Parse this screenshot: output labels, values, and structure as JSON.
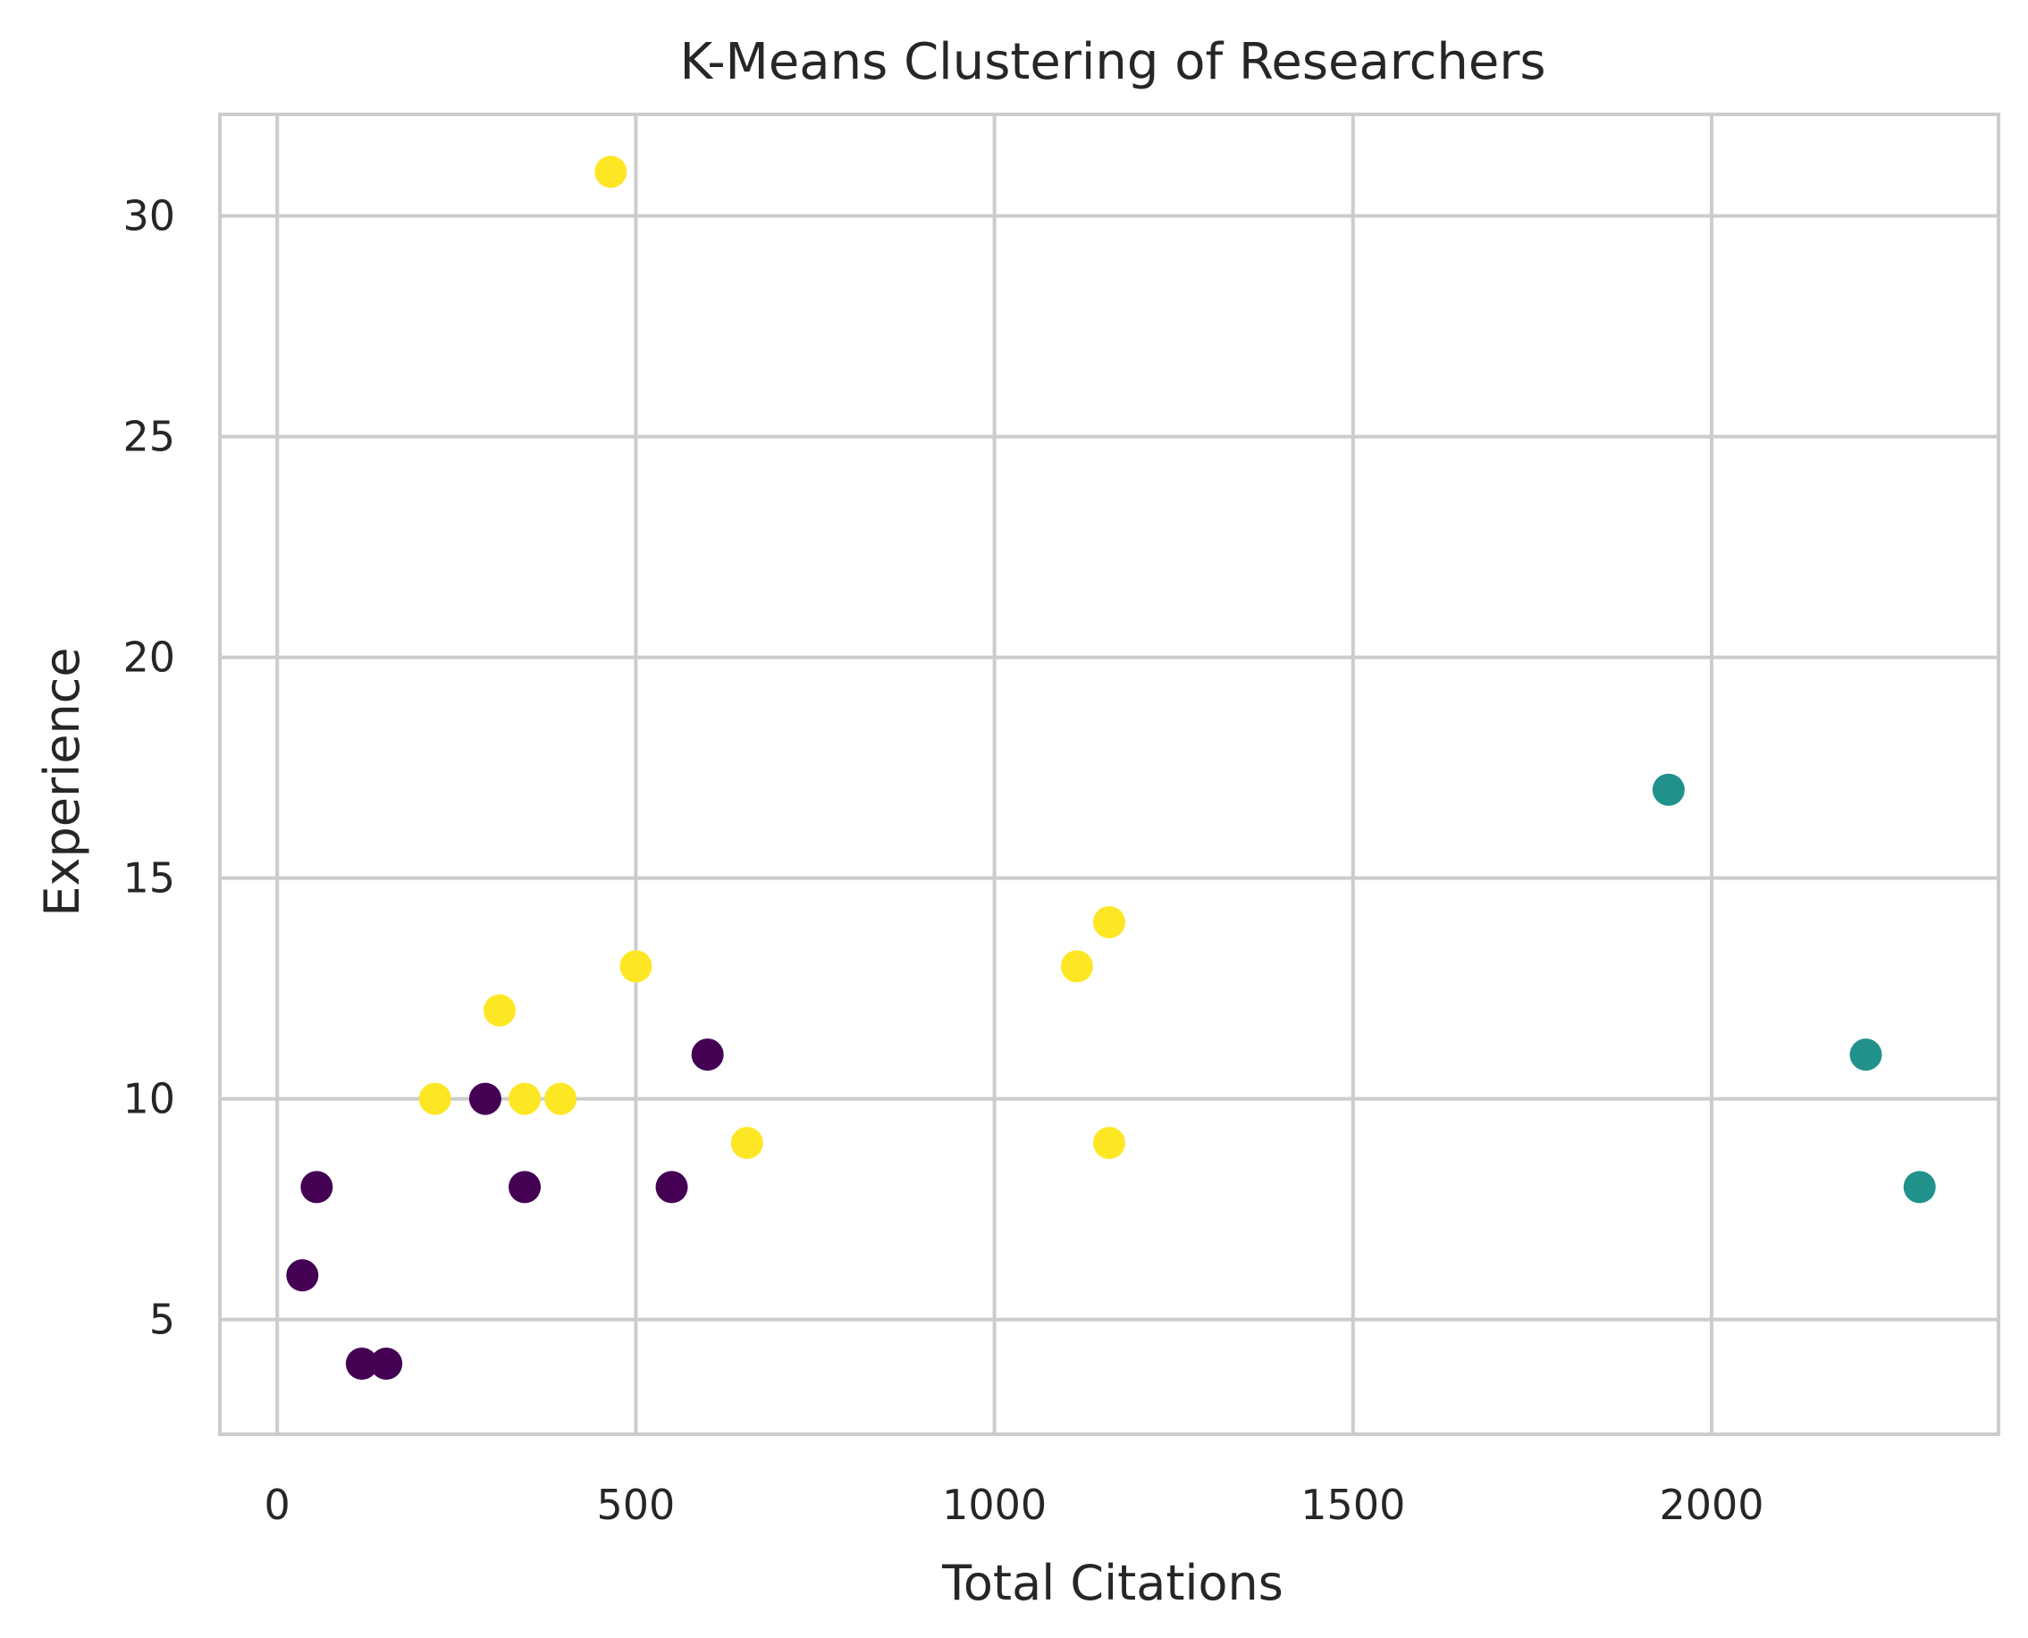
{
  "chart_data": {
    "type": "scatter",
    "title": "K-Means Clustering of Researchers",
    "xlabel": "Total Citations",
    "ylabel": "Experience",
    "xlim": [
      -80,
      2400
    ],
    "ylim": [
      2.4,
      32.3
    ],
    "xticks": [
      0,
      500,
      1000,
      1500,
      2000
    ],
    "yticks": [
      5,
      10,
      15,
      20,
      25,
      30
    ],
    "grid": true,
    "legend": "none",
    "cluster_colors": [
      "#440154",
      "#21918c",
      "#fde725"
    ],
    "points": [
      {
        "x": 465,
        "y": 31,
        "cluster": 2
      },
      {
        "x": 500,
        "y": 13,
        "cluster": 2
      },
      {
        "x": 310,
        "y": 12,
        "cluster": 2
      },
      {
        "x": 220,
        "y": 10,
        "cluster": 2
      },
      {
        "x": 345,
        "y": 10,
        "cluster": 2
      },
      {
        "x": 395,
        "y": 10,
        "cluster": 2
      },
      {
        "x": 655,
        "y": 9,
        "cluster": 2
      },
      {
        "x": 1115,
        "y": 13,
        "cluster": 2
      },
      {
        "x": 1160,
        "y": 14,
        "cluster": 2
      },
      {
        "x": 1160,
        "y": 9,
        "cluster": 2
      },
      {
        "x": 290,
        "y": 10,
        "cluster": 0
      },
      {
        "x": 600,
        "y": 11,
        "cluster": 0
      },
      {
        "x": 55,
        "y": 8,
        "cluster": 0
      },
      {
        "x": 345,
        "y": 8,
        "cluster": 0
      },
      {
        "x": 550,
        "y": 8,
        "cluster": 0
      },
      {
        "x": 35,
        "y": 6,
        "cluster": 0
      },
      {
        "x": 118,
        "y": 4,
        "cluster": 0
      },
      {
        "x": 152,
        "y": 4,
        "cluster": 0
      },
      {
        "x": 1940,
        "y": 17,
        "cluster": 1
      },
      {
        "x": 2215,
        "y": 11,
        "cluster": 1
      },
      {
        "x": 2290,
        "y": 8,
        "cluster": 1
      }
    ]
  }
}
